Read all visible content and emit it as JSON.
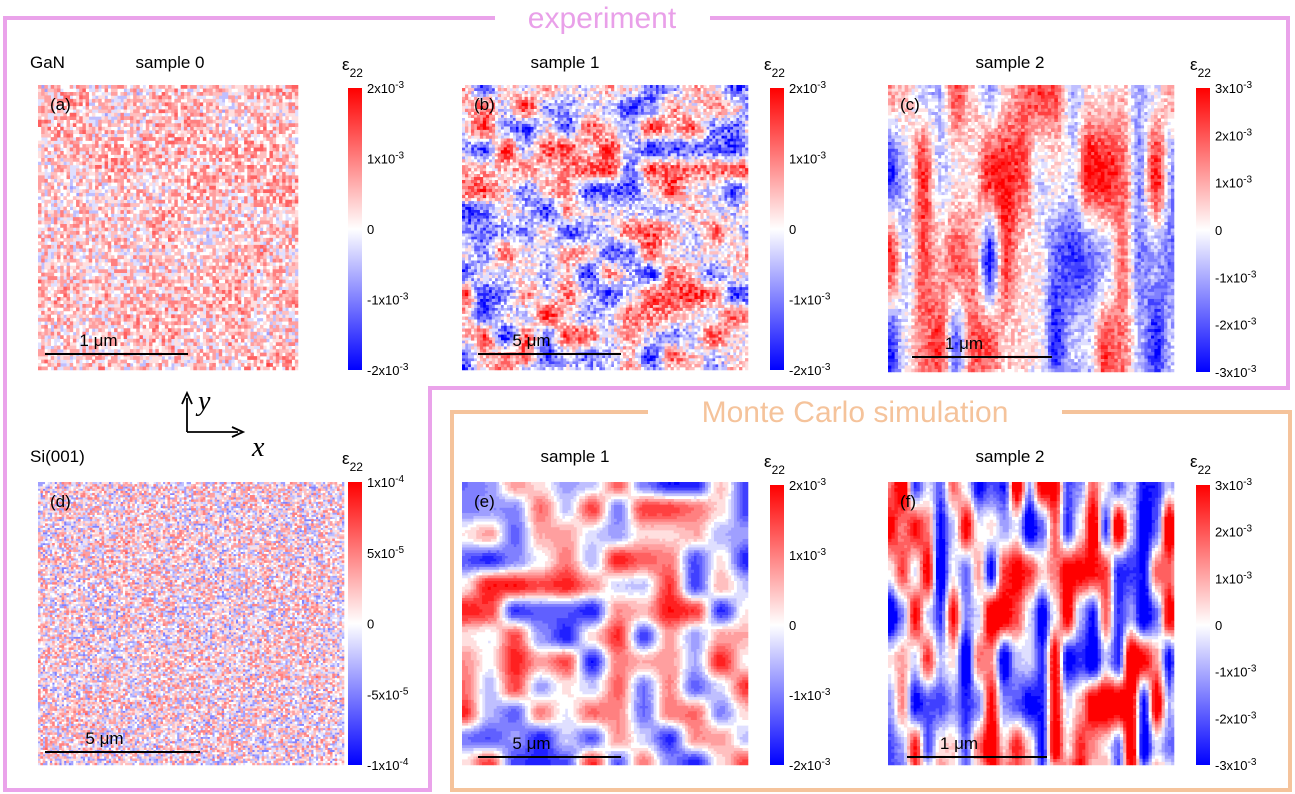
{
  "frames": {
    "experiment": "experiment",
    "simulation": "Monte Carlo simulation"
  },
  "axes": {
    "x": "x",
    "y": "y"
  },
  "panels": [
    {
      "material": "GaN",
      "heading": "sample 0",
      "label": "(a)",
      "colorbar": {
        "symbol": "ε",
        "subscript": "22",
        "ticks": [
          {
            "base": "2x10",
            "exponent": "-3"
          },
          {
            "base": "1x10",
            "exponent": "-3"
          },
          {
            "base": "0"
          },
          {
            "base": "-1x10",
            "exponent": "-3"
          },
          {
            "base": "-2x10",
            "exponent": "-3"
          }
        ]
      },
      "scale_bar": "1 μm"
    },
    {
      "heading": "sample 1",
      "label": "(b)",
      "colorbar": {
        "symbol": "ε",
        "subscript": "22",
        "ticks": [
          {
            "base": "2x10",
            "exponent": "-3"
          },
          {
            "base": "1x10",
            "exponent": "-3"
          },
          {
            "base": "0"
          },
          {
            "base": "-1x10",
            "exponent": "-3"
          },
          {
            "base": "-2x10",
            "exponent": "-3"
          }
        ]
      },
      "scale_bar": "5 μm"
    },
    {
      "heading": "sample 2",
      "label": "(c)",
      "colorbar": {
        "symbol": "ε",
        "subscript": "22",
        "ticks": [
          {
            "base": "3x10",
            "exponent": "-3"
          },
          {
            "base": "2x10",
            "exponent": "-3"
          },
          {
            "base": "1x10",
            "exponent": "-3"
          },
          {
            "base": "0"
          },
          {
            "base": "-1x10",
            "exponent": "-3"
          },
          {
            "base": "-2x10",
            "exponent": "-3"
          },
          {
            "base": "-3x10",
            "exponent": "-3"
          }
        ]
      },
      "scale_bar": "1 μm"
    },
    {
      "material": "Si(001)",
      "label": "(d)",
      "colorbar": {
        "symbol": "ε",
        "subscript": "22",
        "ticks": [
          {
            "base": "1x10",
            "exponent": "-4"
          },
          {
            "base": "5x10",
            "exponent": "-5"
          },
          {
            "base": "0"
          },
          {
            "base": "-5x10",
            "exponent": "-5"
          },
          {
            "base": "-1x10",
            "exponent": "-4"
          }
        ]
      },
      "scale_bar": "5 μm"
    },
    {
      "heading": "sample 1",
      "label": "(e)",
      "colorbar": {
        "symbol": "ε",
        "subscript": "22",
        "ticks": [
          {
            "base": "2x10",
            "exponent": "-3"
          },
          {
            "base": "1x10",
            "exponent": "-3"
          },
          {
            "base": "0"
          },
          {
            "base": "-1x10",
            "exponent": "-3"
          },
          {
            "base": "-2x10",
            "exponent": "-3"
          }
        ]
      },
      "scale_bar": "5 μm"
    },
    {
      "heading": "sample 2",
      "label": "(f)",
      "colorbar": {
        "symbol": "ε",
        "subscript": "22",
        "ticks": [
          {
            "base": "3x10",
            "exponent": "-3"
          },
          {
            "base": "2x10",
            "exponent": "-3"
          },
          {
            "base": "1x10",
            "exponent": "-3"
          },
          {
            "base": "0"
          },
          {
            "base": "-1x10",
            "exponent": "-3"
          },
          {
            "base": "-2x10",
            "exponent": "-3"
          },
          {
            "base": "-3x10",
            "exponent": "-3"
          }
        ]
      },
      "scale_bar": "1 μm"
    }
  ]
}
